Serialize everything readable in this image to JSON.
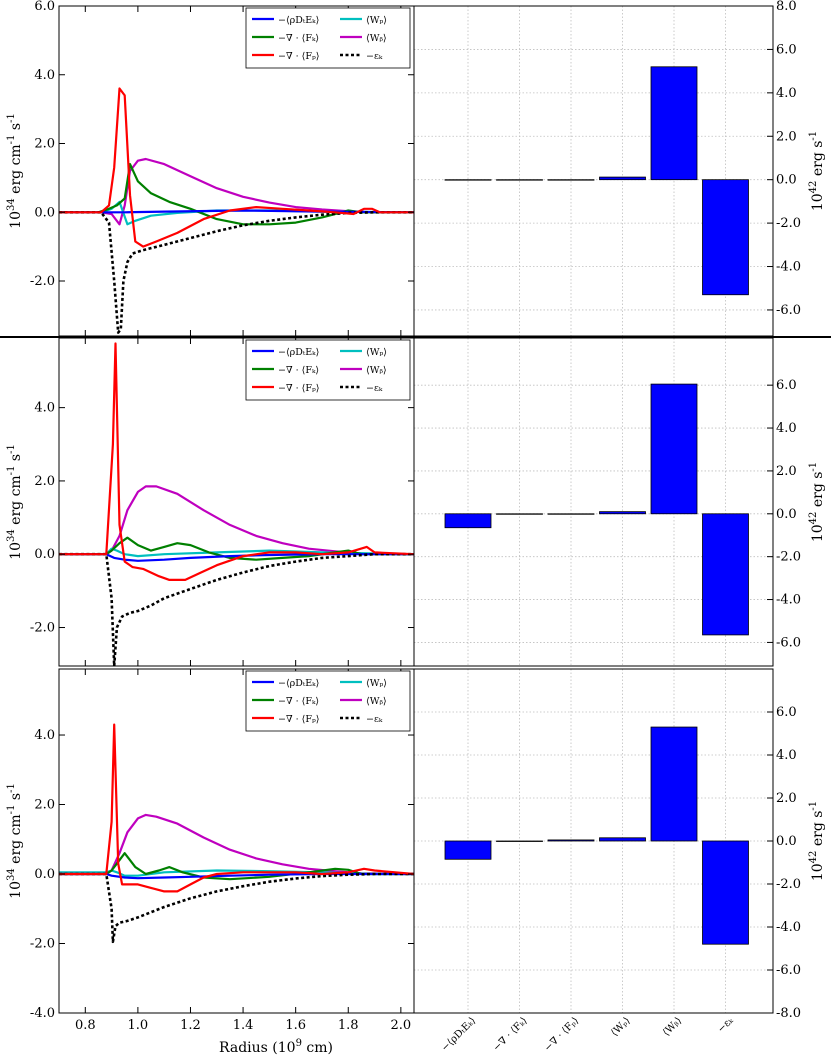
{
  "figure": {
    "xlabel": "Radius (10",
    "xlabel_sup": "9",
    "xlabel_end": " cm)"
  },
  "units": {
    "left_ylabel": "10",
    "left_ylabel_sup": "34",
    "left_ylabel_rest": " erg cm",
    "left_ylabel_sup2": "-1",
    "left_ylabel_end": " s",
    "left_ylabel_sup3": "-1",
    "right_ylabel": "10",
    "right_ylabel_sup": "42",
    "right_ylabel_rest": " erg s",
    "right_ylabel_sup2": "-1"
  },
  "legend_entries": [
    {
      "key": "rhoDtEk",
      "label": "−⟨ρDₜEₖ⟩",
      "color": "#0000ff",
      "dash": false
    },
    {
      "key": "divFk",
      "label": "−∇ · ⟨Fₖ⟩",
      "color": "#008000",
      "dash": false
    },
    {
      "key": "divFp",
      "label": "−∇ · ⟨Fₚ⟩",
      "color": "#ff0000",
      "dash": false
    },
    {
      "key": "Wp",
      "label": "⟨Wₚ⟩",
      "color": "#00bfbf",
      "dash": false
    },
    {
      "key": "Wb",
      "label": "⟨Wᵦ⟩",
      "color": "#bf00bf",
      "dash": false
    },
    {
      "key": "ek",
      "label": "−εₖ",
      "color": "#000000",
      "dash": true
    }
  ],
  "chart_data": [
    {
      "type": "line",
      "panel": "top-left",
      "xlim": [
        0.7,
        2.05
      ],
      "ylim": [
        -3.6,
        6.0
      ],
      "yticks": [
        "6.0",
        "4.0",
        "2.0",
        "0.0",
        "-2.0"
      ],
      "ytick_values": [
        6,
        4,
        2,
        0,
        -2
      ],
      "xticks": [],
      "legend_position": "top-right",
      "series": [
        {
          "key": "rhoDtEk",
          "x": [
            0.7,
            0.88,
            0.95,
            1.1,
            1.4,
            1.7,
            2.05
          ],
          "y": [
            0,
            0,
            0,
            0.02,
            0.05,
            0.02,
            0
          ]
        },
        {
          "key": "divFk",
          "x": [
            0.7,
            0.85,
            0.89,
            0.92,
            0.95,
            0.97,
            1.0,
            1.05,
            1.12,
            1.2,
            1.3,
            1.4,
            1.5,
            1.6,
            1.7,
            1.75,
            1.8,
            1.85,
            1.9,
            2.05
          ],
          "y": [
            0,
            0,
            0.1,
            0.2,
            0.4,
            1.4,
            0.9,
            0.55,
            0.3,
            0.1,
            -0.2,
            -0.35,
            -0.35,
            -0.3,
            -0.15,
            -0.05,
            0.05,
            0.0,
            0,
            0
          ]
        },
        {
          "key": "divFp",
          "x": [
            0.7,
            0.86,
            0.89,
            0.91,
            0.93,
            0.95,
            0.97,
            0.99,
            1.02,
            1.07,
            1.15,
            1.25,
            1.35,
            1.45,
            1.55,
            1.65,
            1.75,
            1.82,
            1.86,
            1.89,
            1.92,
            2.05
          ],
          "y": [
            0,
            0,
            0.2,
            1.3,
            3.6,
            3.4,
            0.5,
            -0.85,
            -1.0,
            -0.85,
            -0.6,
            -0.2,
            0.05,
            0.15,
            0.1,
            0.05,
            0,
            -0.05,
            0.1,
            0.1,
            0,
            0
          ]
        },
        {
          "key": "Wp",
          "x": [
            0.7,
            0.86,
            0.9,
            0.93,
            0.96,
            0.99,
            1.05,
            1.15,
            1.3,
            1.5,
            1.7,
            2.05
          ],
          "y": [
            0,
            0,
            0.1,
            0.3,
            -0.35,
            -0.25,
            -0.1,
            -0.02,
            0.05,
            0.05,
            0.02,
            0
          ]
        },
        {
          "key": "Wb",
          "x": [
            0.7,
            0.86,
            0.9,
            0.93,
            0.95,
            0.97,
            1.0,
            1.03,
            1.1,
            1.2,
            1.3,
            1.4,
            1.5,
            1.6,
            1.7,
            1.8,
            1.9,
            2.05
          ],
          "y": [
            0,
            0,
            -0.05,
            -0.35,
            0.2,
            1.2,
            1.5,
            1.55,
            1.4,
            1.05,
            0.7,
            0.45,
            0.28,
            0.15,
            0.08,
            0.03,
            0.0,
            0
          ]
        },
        {
          "key": "ek",
          "x": [
            0.7,
            0.86,
            0.89,
            0.91,
            0.925,
            0.935,
            0.945,
            0.96,
            0.98,
            1.02,
            1.1,
            1.2,
            1.3,
            1.4,
            1.5,
            1.6,
            1.7,
            1.8,
            1.9,
            2.05
          ],
          "y": [
            0,
            0,
            -0.3,
            -2.0,
            -3.5,
            -3.4,
            -2.0,
            -1.45,
            -1.2,
            -1.1,
            -0.95,
            -0.75,
            -0.55,
            -0.38,
            -0.25,
            -0.15,
            -0.07,
            -0.02,
            0,
            0
          ]
        }
      ]
    },
    {
      "type": "bar",
      "panel": "top-right",
      "ylim": [
        -7.2,
        8.0
      ],
      "yticks": [
        "8.0",
        "6.0",
        "4.0",
        "2.0",
        "0.0",
        "-2.0",
        "-4.0",
        "-6.0"
      ],
      "ytick_values": [
        8,
        6,
        4,
        2,
        0,
        -2,
        -4,
        -6
      ],
      "values": [
        0.0,
        0.0,
        0.0,
        0.12,
        5.2,
        -5.3
      ]
    },
    {
      "type": "line",
      "panel": "middle-left",
      "xlim": [
        0.7,
        2.05
      ],
      "ylim": [
        -3.05,
        5.9
      ],
      "yticks": [
        "4.0",
        "2.0",
        "0.0",
        "-2.0"
      ],
      "ytick_values": [
        4,
        2,
        0,
        -2
      ],
      "xticks": [],
      "legend_position": "top-right",
      "series": [
        {
          "key": "rhoDtEk",
          "x": [
            0.7,
            0.88,
            0.91,
            0.95,
            1.0,
            1.1,
            1.2,
            1.35,
            1.5,
            1.7,
            1.9,
            2.05
          ],
          "y": [
            0,
            0,
            -0.1,
            -0.15,
            -0.18,
            -0.15,
            -0.1,
            -0.05,
            -0.02,
            0,
            0,
            0
          ]
        },
        {
          "key": "divFk",
          "x": [
            0.7,
            0.88,
            0.9,
            0.93,
            0.96,
            1.0,
            1.05,
            1.1,
            1.15,
            1.2,
            1.27,
            1.35,
            1.45,
            1.55,
            1.65,
            1.75,
            1.8,
            1.85,
            2.05
          ],
          "y": [
            0,
            0,
            0.1,
            0.3,
            0.45,
            0.25,
            0.1,
            0.2,
            0.3,
            0.25,
            0.05,
            -0.1,
            -0.15,
            -0.1,
            -0.05,
            0.05,
            0.1,
            0,
            0
          ]
        },
        {
          "key": "divFp",
          "x": [
            0.7,
            0.88,
            0.905,
            0.915,
            0.93,
            0.95,
            0.98,
            1.02,
            1.08,
            1.12,
            1.18,
            1.24,
            1.3,
            1.4,
            1.5,
            1.6,
            1.7,
            1.8,
            1.87,
            1.9,
            2.05
          ],
          "y": [
            0,
            0,
            3.0,
            5.75,
            0.8,
            -0.2,
            -0.35,
            -0.4,
            -0.6,
            -0.7,
            -0.7,
            -0.5,
            -0.3,
            -0.05,
            0.05,
            0.05,
            0,
            0.05,
            0.2,
            0.05,
            0
          ]
        },
        {
          "key": "Wp",
          "x": [
            0.7,
            0.88,
            0.9,
            0.92,
            0.95,
            1.0,
            1.1,
            1.3,
            1.5,
            1.7,
            2.05
          ],
          "y": [
            0,
            0,
            0.15,
            0.1,
            0,
            -0.05,
            0,
            0.05,
            0.1,
            0.05,
            0
          ]
        },
        {
          "key": "Wb",
          "x": [
            0.7,
            0.88,
            0.9,
            0.93,
            0.96,
            1.0,
            1.03,
            1.07,
            1.15,
            1.25,
            1.35,
            1.45,
            1.55,
            1.65,
            1.75,
            1.85,
            2.05
          ],
          "y": [
            0,
            0,
            0.1,
            0.5,
            1.2,
            1.7,
            1.85,
            1.85,
            1.65,
            1.2,
            0.8,
            0.5,
            0.3,
            0.15,
            0.08,
            0.02,
            0
          ]
        },
        {
          "key": "ek",
          "x": [
            0.7,
            0.88,
            0.9,
            0.91,
            0.92,
            0.94,
            0.97,
            1.0,
            1.05,
            1.1,
            1.2,
            1.3,
            1.4,
            1.5,
            1.6,
            1.7,
            1.8,
            1.9,
            2.05
          ],
          "y": [
            0,
            0,
            -1.2,
            -3.05,
            -2.0,
            -1.7,
            -1.6,
            -1.55,
            -1.4,
            -1.2,
            -0.95,
            -0.7,
            -0.5,
            -0.32,
            -0.2,
            -0.1,
            -0.05,
            0,
            0
          ]
        }
      ]
    },
    {
      "type": "bar",
      "panel": "middle-right",
      "ylim": [
        -7.1,
        8.2
      ],
      "yticks": [
        "6.0",
        "4.0",
        "2.0",
        "0.0",
        "-2.0",
        "-4.0",
        "-6.0"
      ],
      "ytick_values": [
        6,
        4,
        2,
        0,
        -2,
        -4,
        -6
      ],
      "values": [
        -0.65,
        0.0,
        0.0,
        0.1,
        6.05,
        -5.65
      ]
    },
    {
      "type": "line",
      "panel": "bottom-left",
      "xlim": [
        0.7,
        2.05
      ],
      "ylim": [
        -4.0,
        5.9
      ],
      "yticks": [
        "4.0",
        "2.0",
        "0.0",
        "-2.0",
        "-4.0"
      ],
      "ytick_values": [
        4,
        2,
        0,
        -2,
        -4
      ],
      "xticks": [
        "0.8",
        "1.0",
        "1.2",
        "1.4",
        "1.6",
        "1.8",
        "2.0"
      ],
      "xtick_values": [
        0.8,
        1.0,
        1.2,
        1.4,
        1.6,
        1.8,
        2.0
      ],
      "legend_position": "top-right",
      "series": [
        {
          "key": "rhoDtEk",
          "x": [
            0.7,
            0.88,
            0.9,
            0.95,
            1.0,
            1.1,
            1.2,
            1.35,
            1.5,
            1.7,
            1.9,
            2.05
          ],
          "y": [
            0,
            0,
            -0.05,
            -0.1,
            -0.12,
            -0.1,
            -0.08,
            -0.05,
            -0.02,
            0,
            0,
            0
          ]
        },
        {
          "key": "divFk",
          "x": [
            0.7,
            0.88,
            0.9,
            0.92,
            0.95,
            0.99,
            1.03,
            1.08,
            1.12,
            1.17,
            1.25,
            1.35,
            1.5,
            1.65,
            1.75,
            1.8,
            1.85,
            2.05
          ],
          "y": [
            0,
            0,
            0.1,
            0.3,
            0.6,
            0.2,
            0.0,
            0.1,
            0.2,
            0.05,
            -0.1,
            -0.15,
            -0.08,
            0.05,
            0.15,
            0.12,
            0,
            0
          ]
        },
        {
          "key": "divFp",
          "x": [
            0.7,
            0.88,
            0.9,
            0.91,
            0.925,
            0.94,
            0.96,
            1.0,
            1.05,
            1.1,
            1.15,
            1.2,
            1.25,
            1.3,
            1.4,
            1.5,
            1.6,
            1.7,
            1.8,
            1.86,
            1.9,
            2.05
          ],
          "y": [
            0,
            0,
            1.5,
            4.3,
            0.3,
            -0.3,
            -0.3,
            -0.3,
            -0.4,
            -0.5,
            -0.5,
            -0.3,
            -0.1,
            0.0,
            0.05,
            0.05,
            0.05,
            0,
            0.05,
            0.15,
            0.1,
            0
          ]
        },
        {
          "key": "Wp",
          "x": [
            0.7,
            0.88,
            0.9,
            0.92,
            0.95,
            1.0,
            1.1,
            1.3,
            1.5,
            1.7,
            1.9,
            2.05
          ],
          "y": [
            0.05,
            0.05,
            0.1,
            0.05,
            -0.05,
            -0.05,
            0.05,
            0.1,
            0.08,
            0.05,
            0,
            0
          ]
        },
        {
          "key": "Wb",
          "x": [
            0.7,
            0.88,
            0.9,
            0.93,
            0.96,
            1.0,
            1.03,
            1.07,
            1.15,
            1.25,
            1.35,
            1.45,
            1.55,
            1.65,
            1.75,
            1.85,
            2.05
          ],
          "y": [
            0,
            0,
            0.1,
            0.6,
            1.2,
            1.6,
            1.7,
            1.65,
            1.45,
            1.05,
            0.7,
            0.45,
            0.28,
            0.15,
            0.08,
            0.02,
            0
          ]
        },
        {
          "key": "ek",
          "x": [
            0.7,
            0.88,
            0.9,
            0.905,
            0.915,
            0.93,
            0.96,
            1.0,
            1.05,
            1.1,
            1.2,
            1.3,
            1.4,
            1.5,
            1.6,
            1.7,
            1.8,
            1.9,
            2.05
          ],
          "y": [
            0,
            0,
            -1.0,
            -1.95,
            -1.5,
            -1.4,
            -1.35,
            -1.25,
            -1.1,
            -0.95,
            -0.7,
            -0.5,
            -0.35,
            -0.22,
            -0.13,
            -0.06,
            -0.02,
            0,
            0
          ]
        }
      ]
    },
    {
      "type": "bar",
      "panel": "bottom-right",
      "ylim": [
        -8.0,
        8.0
      ],
      "yticks": [
        "6.0",
        "4.0",
        "2.0",
        "0.0",
        "-2.0",
        "-4.0",
        "-6.0",
        "-8.0"
      ],
      "ytick_values": [
        6,
        4,
        2,
        0,
        -2,
        -4,
        -6,
        -8
      ],
      "categories": [
        "−⟨ρDₜEₖ⟩",
        "−∇ · ⟨Fₖ⟩",
        "−∇ · ⟨Fₚ⟩",
        "⟨Wₚ⟩",
        "⟨Wᵦ⟩",
        "−εₖ"
      ],
      "values": [
        -0.85,
        0.0,
        0.05,
        0.15,
        5.3,
        -4.8
      ]
    }
  ]
}
